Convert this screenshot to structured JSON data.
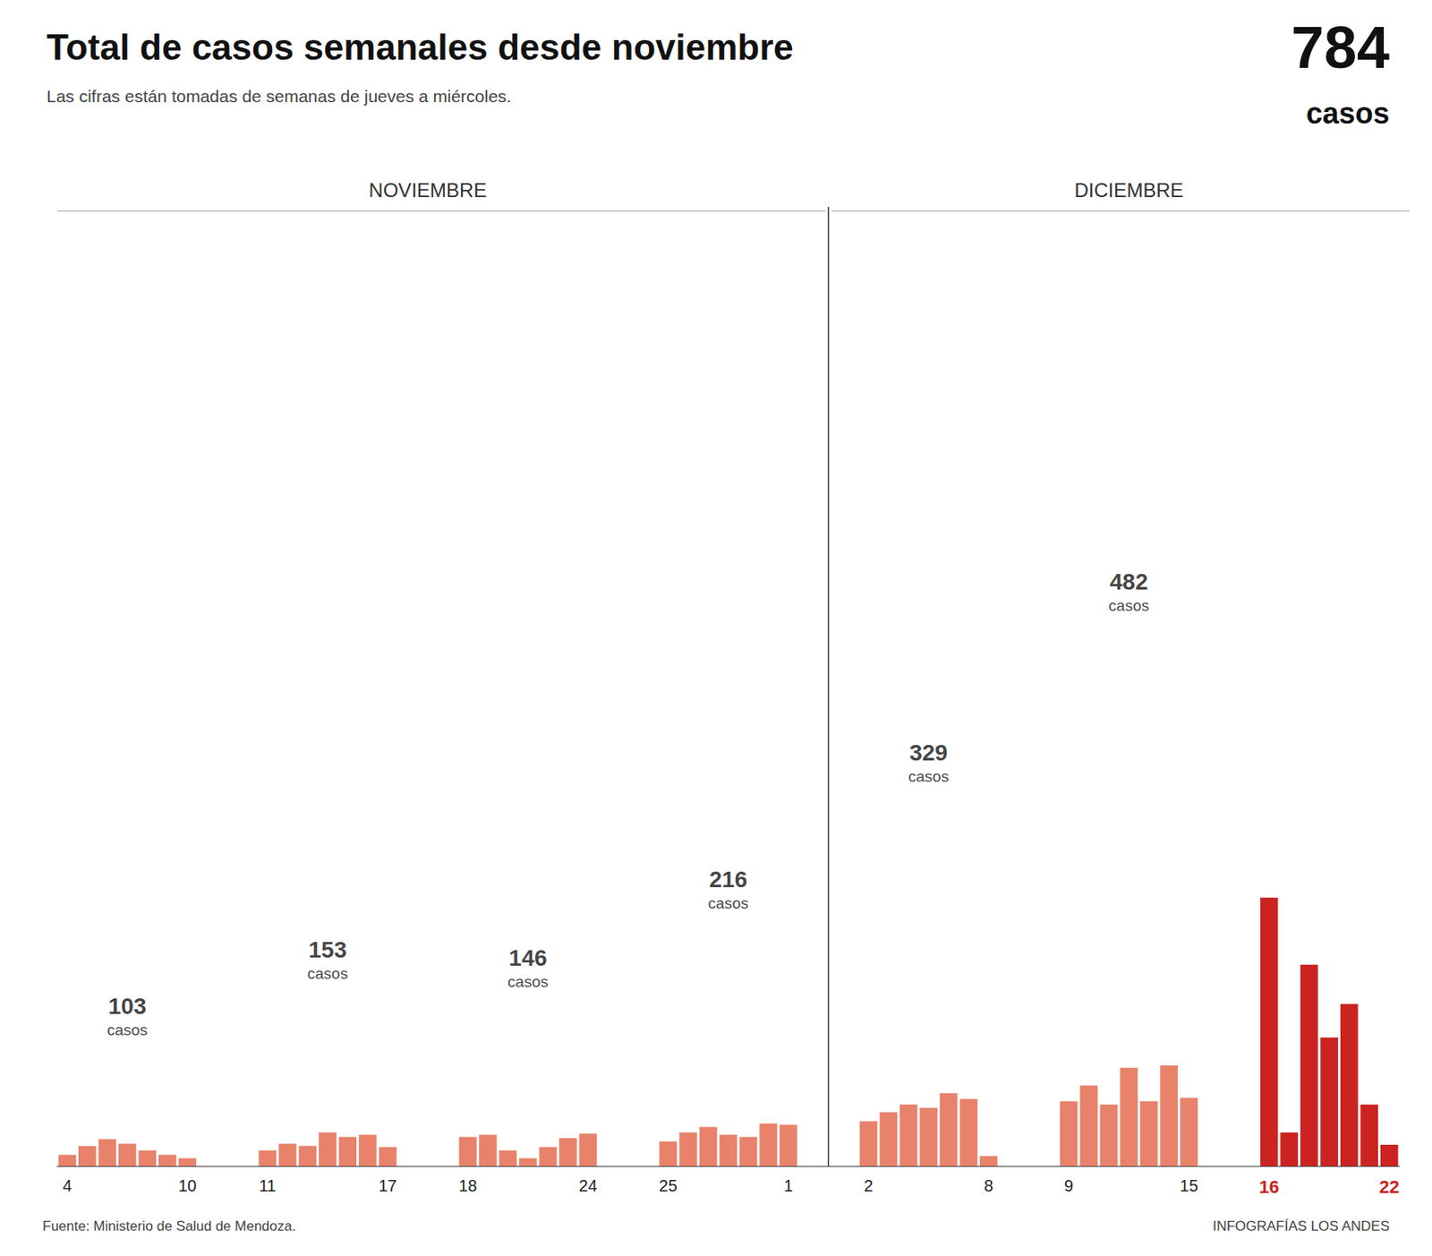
{
  "chart_data": {
    "type": "bar",
    "title": "Total de casos semanales desde noviembre",
    "subtitle": "Las cifras están tomadas de semanas de jueves a miércoles.",
    "source": "Fuente: Ministerio de Salud de Mendoza.",
    "credit": "INFOGRAFÍAS LOS ANDES",
    "categories": [
      "4",
      null,
      null,
      null,
      null,
      null,
      "10",
      null,
      null,
      null,
      "11",
      null,
      null,
      null,
      null,
      null,
      "17",
      null,
      null,
      null,
      "18",
      null,
      null,
      null,
      null,
      null,
      "24",
      null,
      null,
      null,
      "25",
      null,
      null,
      null,
      null,
      null,
      "1",
      null,
      null,
      null,
      "2",
      null,
      null,
      null,
      null,
      null,
      "8",
      null,
      null,
      null,
      "9",
      null,
      null,
      null,
      null,
      null,
      "15",
      null,
      null,
      null,
      "16",
      null,
      null,
      null,
      null,
      null,
      "22"
    ],
    "values": [
      10,
      18,
      24,
      20,
      14,
      10,
      7,
      null,
      null,
      null,
      14,
      20,
      18,
      30,
      26,
      28,
      17,
      null,
      null,
      null,
      26,
      28,
      14,
      7,
      17,
      25,
      29,
      null,
      null,
      null,
      22,
      30,
      35,
      28,
      26,
      38,
      37,
      null,
      null,
      null,
      40,
      48,
      55,
      52,
      65,
      60,
      9,
      null,
      null,
      null,
      58,
      72,
      55,
      88,
      58,
      90,
      61,
      null,
      null,
      null,
      240,
      30,
      180,
      115,
      145,
      55,
      19
    ],
    "colors": [
      "#E8826A",
      "#E8826A",
      "#E8826A",
      "#E8826A",
      "#E8826A",
      "#E8826A",
      "#E8826A",
      null,
      null,
      null,
      "#E8826A",
      "#E8826A",
      "#E8826A",
      "#E8826A",
      "#E8826A",
      "#E8826A",
      "#E8826A",
      null,
      null,
      null,
      "#E8826A",
      "#E8826A",
      "#E8826A",
      "#E8826A",
      "#E8826A",
      "#E8826A",
      "#E8826A",
      null,
      null,
      null,
      "#E8826A",
      "#E8826A",
      "#E8826A",
      "#E8826A",
      "#E8826A",
      "#E8826A",
      "#E8826A",
      null,
      null,
      null,
      "#E8826A",
      "#E8826A",
      "#E8826A",
      "#E8826A",
      "#E8826A",
      "#E8826A",
      "#E8826A",
      null,
      null,
      null,
      "#E8826A",
      "#E8826A",
      "#E8826A",
      "#E8826A",
      "#E8826A",
      "#E8826A",
      "#E8826A",
      null,
      null,
      null,
      "#CC2222",
      "#CC2222",
      "#CC2222",
      "#CC2222",
      "#CC2222",
      "#CC2222",
      "#CC2222"
    ],
    "ylim": [
      0,
      823.2
    ],
    "grid": false,
    "tick_labels": "x",
    "week_totals": [
      103,
      153,
      146,
      216,
      329,
      482
    ],
    "week_totals_label": "casos",
    "headline": {
      "value": 784,
      "label": "casos"
    },
    "months": [
      {
        "label": "NOVIEMBRE",
        "weeks": 4
      },
      {
        "label": "DICIEMBRE",
        "weeks": 3
      }
    ]
  }
}
